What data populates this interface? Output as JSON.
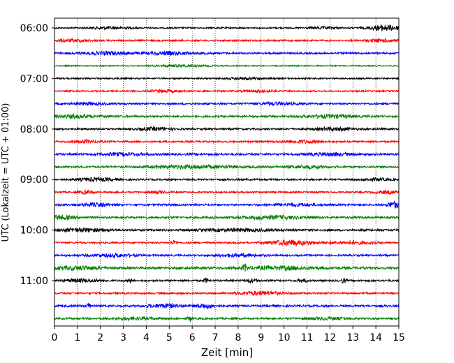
{
  "chart_data": {
    "type": "line",
    "subtype": "helicorder",
    "title": "",
    "xlabel": "Zeit  [min]",
    "ylabel": "UTC (Lokalzeit = UTC + 01:00)",
    "xlim": [
      0,
      15
    ],
    "x_ticks": [
      "0",
      "1",
      "2",
      "3",
      "4",
      "5",
      "6",
      "7",
      "8",
      "9",
      "10",
      "11",
      "12",
      "13",
      "14",
      "15"
    ],
    "y_tick_labels": [
      "06:00",
      "07:00",
      "08:00",
      "09:00",
      "10:00",
      "11:00"
    ],
    "grid": "vertical-dotted",
    "legend": "none",
    "trace_minutes_each": 15,
    "trace_start_times": [
      "06:00",
      "06:15",
      "06:30",
      "06:45",
      "07:00",
      "07:15",
      "07:30",
      "07:45",
      "08:00",
      "08:15",
      "08:30",
      "08:45",
      "09:00",
      "09:15",
      "09:30",
      "09:45",
      "10:00",
      "10:15",
      "10:30",
      "10:45",
      "11:00",
      "11:15",
      "11:30",
      "11:45"
    ],
    "color_cycle": [
      "#000000",
      "#ff0000",
      "#0000ff",
      "#008000"
    ],
    "traces": [
      {
        "start": "06:00",
        "color": "#000000",
        "base": 0.25,
        "bursts": [
          [
            2.4,
            0.8,
            0.35
          ],
          [
            11.7,
            0.6,
            0.3
          ],
          [
            14.4,
            0.7,
            0.9
          ]
        ]
      },
      {
        "start": "06:15",
        "color": "#ff0000",
        "base": 0.28,
        "bursts": [
          [
            0.8,
            0.8,
            0.35
          ],
          [
            14.3,
            0.8,
            0.4
          ]
        ]
      },
      {
        "start": "06:30",
        "color": "#0000ff",
        "base": 0.3,
        "bursts": [
          [
            2.3,
            1.0,
            0.45
          ],
          [
            5.0,
            1.2,
            0.45
          ]
        ]
      },
      {
        "start": "06:45",
        "color": "#008000",
        "base": 0.2,
        "bursts": [
          [
            5.5,
            1.0,
            0.3
          ]
        ]
      },
      {
        "start": "07:00",
        "color": "#000000",
        "base": 0.25,
        "bursts": [
          [
            8.3,
            0.8,
            0.3
          ]
        ]
      },
      {
        "start": "07:15",
        "color": "#ff0000",
        "base": 0.25,
        "bursts": [
          [
            4.8,
            0.7,
            0.35
          ],
          [
            9.0,
            0.6,
            0.35
          ]
        ]
      },
      {
        "start": "07:30",
        "color": "#0000ff",
        "base": 0.3,
        "bursts": [
          [
            1.5,
            0.7,
            0.4
          ],
          [
            9.8,
            1.0,
            0.35
          ]
        ]
      },
      {
        "start": "07:45",
        "color": "#008000",
        "base": 0.35,
        "bursts": [
          [
            0.8,
            1.0,
            0.45
          ],
          [
            12.0,
            1.0,
            0.45
          ]
        ]
      },
      {
        "start": "08:00",
        "color": "#000000",
        "base": 0.3,
        "bursts": [
          [
            4.4,
            0.7,
            0.45
          ],
          [
            12.2,
            0.8,
            0.5
          ]
        ]
      },
      {
        "start": "08:15",
        "color": "#ff0000",
        "base": 0.3,
        "bursts": [
          [
            1.4,
            0.6,
            0.4
          ],
          [
            10.8,
            0.9,
            0.4
          ]
        ]
      },
      {
        "start": "08:30",
        "color": "#0000ff",
        "base": 0.35,
        "bursts": [
          [
            3.0,
            1.0,
            0.35
          ],
          [
            12.0,
            1.0,
            0.4
          ]
        ]
      },
      {
        "start": "08:45",
        "color": "#008000",
        "base": 0.3,
        "bursts": [
          [
            6.0,
            2.0,
            0.5
          ],
          [
            11.0,
            1.0,
            0.4
          ]
        ]
      },
      {
        "start": "09:00",
        "color": "#000000",
        "base": 0.3,
        "bursts": [
          [
            1.8,
            0.8,
            0.5
          ],
          [
            14.0,
            0.6,
            0.35
          ]
        ]
      },
      {
        "start": "09:15",
        "color": "#ff0000",
        "base": 0.28,
        "bursts": [
          [
            1.4,
            0.3,
            0.5
          ],
          [
            4.5,
            0.4,
            0.4
          ],
          [
            14.5,
            0.5,
            0.4
          ]
        ]
      },
      {
        "start": "09:30",
        "color": "#0000ff",
        "base": 0.32,
        "bursts": [
          [
            1.8,
            0.7,
            0.45
          ],
          [
            10.5,
            1.0,
            0.35
          ],
          [
            14.8,
            0.3,
            1.0
          ]
        ]
      },
      {
        "start": "09:45",
        "color": "#008000",
        "base": 0.35,
        "bursts": [
          [
            0.3,
            0.5,
            0.6
          ],
          [
            9.5,
            1.5,
            0.45
          ]
        ]
      },
      {
        "start": "10:00",
        "color": "#000000",
        "base": 0.35,
        "bursts": [
          [
            1.2,
            1.0,
            0.5
          ],
          [
            8.0,
            1.5,
            0.35
          ]
        ]
      },
      {
        "start": "10:15",
        "color": "#ff0000",
        "base": 0.28,
        "bursts": [
          [
            5.2,
            0.15,
            0.6
          ],
          [
            10.3,
            1.0,
            0.8
          ],
          [
            13.0,
            1.0,
            0.4
          ]
        ]
      },
      {
        "start": "10:30",
        "color": "#0000ff",
        "base": 0.3,
        "bursts": [
          [
            2.5,
            1.0,
            0.4
          ],
          [
            8.0,
            1.0,
            0.4
          ]
        ]
      },
      {
        "start": "10:45",
        "color": "#008000",
        "base": 0.4,
        "bursts": [
          [
            1.0,
            1.0,
            0.5
          ],
          [
            8.3,
            0.1,
            1.1
          ],
          [
            10.0,
            1.5,
            0.45
          ]
        ]
      },
      {
        "start": "11:00",
        "color": "#000000",
        "base": 0.3,
        "bursts": [
          [
            1.2,
            0.8,
            0.45
          ],
          [
            3.3,
            0.1,
            0.7
          ],
          [
            6.6,
            0.1,
            0.7
          ],
          [
            8.6,
            0.3,
            0.5
          ],
          [
            10.8,
            0.2,
            0.5
          ],
          [
            12.6,
            0.1,
            0.7
          ]
        ]
      },
      {
        "start": "11:15",
        "color": "#ff0000",
        "base": 0.3,
        "bursts": [
          [
            9.0,
            1.0,
            0.55
          ]
        ]
      },
      {
        "start": "11:30",
        "color": "#0000ff",
        "base": 0.35,
        "bursts": [
          [
            1.5,
            0.1,
            0.8
          ],
          [
            4.8,
            0.8,
            0.5
          ],
          [
            6.6,
            0.4,
            0.65
          ]
        ]
      },
      {
        "start": "11:45",
        "color": "#008000",
        "base": 0.3,
        "bursts": [
          [
            3.5,
            1.0,
            0.35
          ],
          [
            5.9,
            0.1,
            0.9
          ],
          [
            11.8,
            1.0,
            0.35
          ]
        ]
      }
    ]
  }
}
